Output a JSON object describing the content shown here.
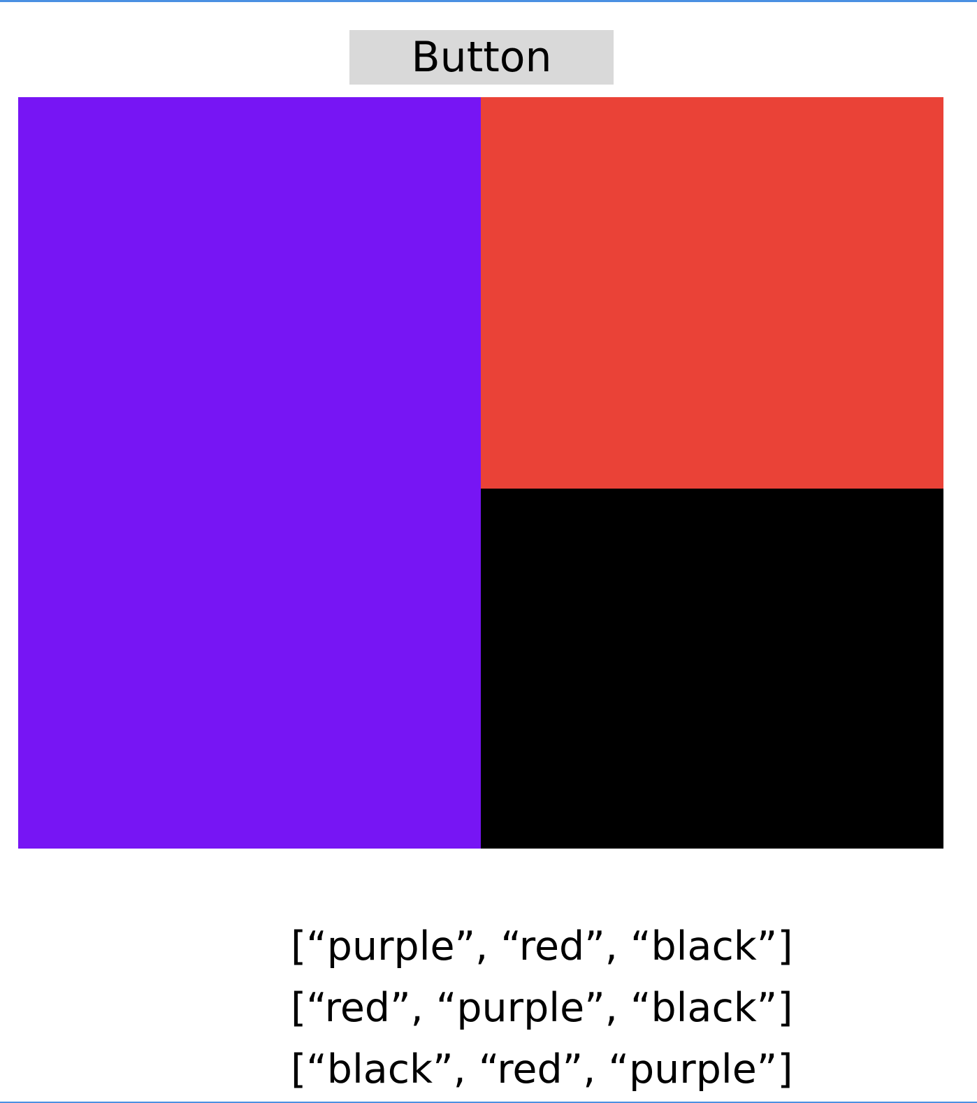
{
  "theme": {
    "frame_accent": "#4a90e2",
    "button_background": "#d9d9d9"
  },
  "button": {
    "label": "Button"
  },
  "color_grid": {
    "panels": [
      {
        "name": "purple",
        "color": "#7715f4"
      },
      {
        "name": "red",
        "color": "#ea4237"
      },
      {
        "name": "black",
        "color": "#000000"
      }
    ]
  },
  "orders": [
    "[“purple”, “red”, “black”]",
    "[“red”, “purple”, “black”]",
    "[“black”, “red”, “purple”]"
  ]
}
